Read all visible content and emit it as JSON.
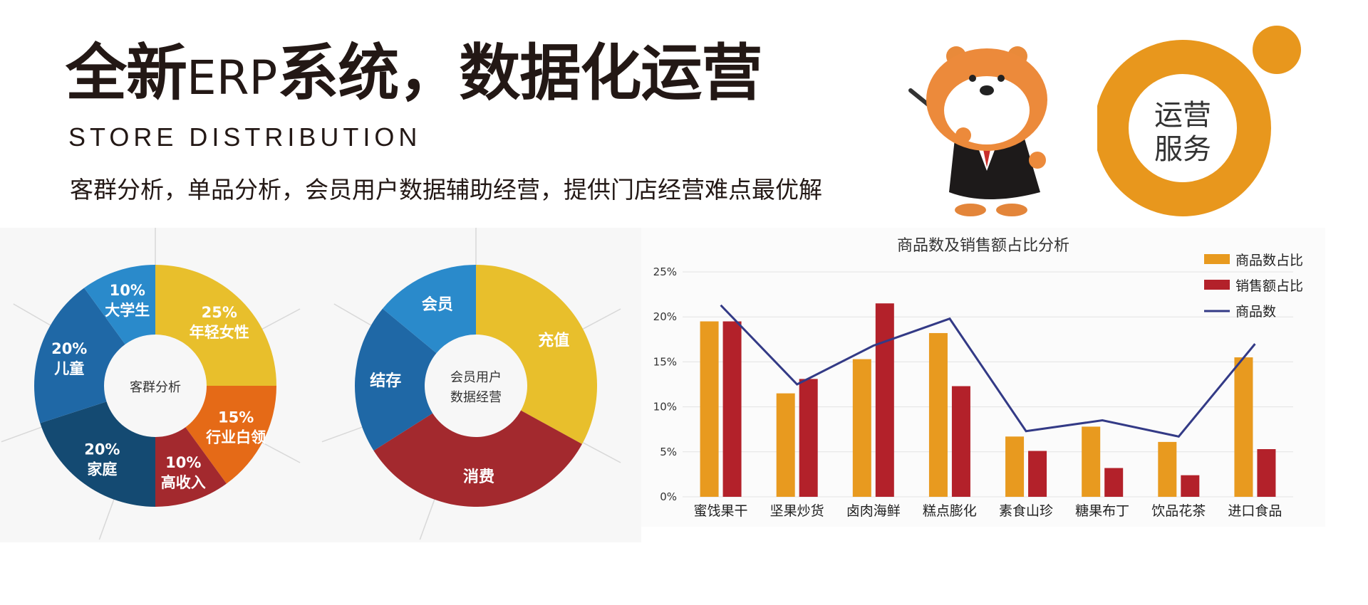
{
  "header": {
    "title_part1": "全新",
    "title_latin": "ERP",
    "title_part2": "系统，数据化运营",
    "subtitle": "STORE DISTRIBUTION",
    "tagline": "客群分析，单品分析，会员用户数据辅助经营，提供门店经营难点最优解"
  },
  "badge": {
    "line1": "运营",
    "line2": "服务",
    "color": "#e8971d"
  },
  "colors": {
    "orange": "#e89a1f",
    "red": "#b3212a",
    "navy": "#333a86",
    "yellow": "#e8bf2c",
    "blue_light": "#2a8acb",
    "blue_mid": "#1f68a6",
    "blue_dark": "#144a72",
    "crimson": "#a3292e",
    "orange_pie": "#e56a17"
  },
  "chart_data": [
    {
      "type": "pie",
      "center_label": "客群分析",
      "slices": [
        {
          "pct": "25%",
          "label": "年轻女性",
          "value": 25
        },
        {
          "pct": "15%",
          "label": "行业白领",
          "value": 15
        },
        {
          "pct": "10%",
          "label": "高收入",
          "value": 10
        },
        {
          "pct": "20%",
          "label": "家庭",
          "value": 20
        },
        {
          "pct": "20%",
          "label": "儿童",
          "value": 20
        },
        {
          "pct": "10%",
          "label": "大学生",
          "value": 10
        }
      ]
    },
    {
      "type": "pie",
      "center_label_line1": "会员用户",
      "center_label_line2": "数据经营",
      "slices": [
        {
          "label": "充值",
          "value": 33
        },
        {
          "label": "消费",
          "value": 33
        },
        {
          "label": "结存",
          "value": 20
        },
        {
          "label": "会员",
          "value": 14
        }
      ]
    },
    {
      "type": "bar",
      "title": "商品数及销售额占比分析",
      "categories": [
        "蜜饯果干",
        "坚果炒货",
        "卤肉海鲜",
        "糕点膨化",
        "素食山珍",
        "糖果布丁",
        "饮品花茶",
        "进口食品"
      ],
      "ylim": [
        0,
        25
      ],
      "yticks": [
        "0%",
        "5%",
        "10%",
        "15%",
        "20%",
        "25%"
      ],
      "grid": true,
      "legend_position": "top-right",
      "series": [
        {
          "name": "商品数占比",
          "kind": "bar",
          "values": [
            19.5,
            11.5,
            15.3,
            18.2,
            6.7,
            7.8,
            6.1,
            15.5
          ]
        },
        {
          "name": "销售额占比",
          "kind": "bar",
          "values": [
            19.5,
            13.1,
            21.5,
            12.3,
            5.1,
            3.2,
            2.4,
            5.3
          ]
        },
        {
          "name": "商品数",
          "kind": "line",
          "values": [
            21.3,
            12.5,
            16.8,
            19.8,
            7.3,
            8.5,
            6.7,
            17.0
          ]
        }
      ]
    }
  ]
}
